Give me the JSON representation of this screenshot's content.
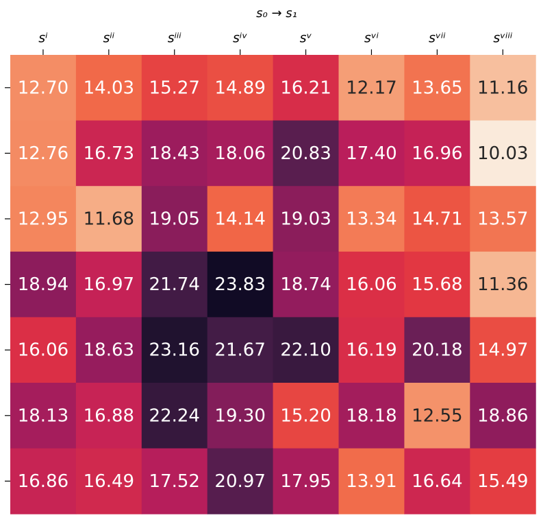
{
  "chart_data": {
    "type": "heatmap",
    "title": "s₀ → s₁",
    "x_categories": [
      "sⁱ",
      "sⁱⁱ",
      "sⁱⁱⁱ",
      "sⁱᵛ",
      "sᵛ",
      "sᵛⁱ",
      "sᵛⁱⁱ",
      "sᵛⁱⁱⁱ"
    ],
    "y_categories": [
      null,
      null,
      null,
      null,
      null,
      null,
      null
    ],
    "colormap": "rocket",
    "clim": [
      10,
      24.5
    ],
    "values": [
      [
        12.7,
        14.03,
        15.27,
        14.89,
        16.21,
        12.17,
        13.65,
        11.16
      ],
      [
        12.76,
        16.73,
        18.43,
        18.06,
        20.83,
        17.4,
        16.96,
        10.03
      ],
      [
        12.95,
        11.68,
        19.05,
        14.14,
        19.03,
        13.34,
        14.71,
        13.57
      ],
      [
        18.94,
        16.97,
        21.74,
        23.83,
        18.74,
        16.06,
        15.68,
        11.36
      ],
      [
        16.06,
        18.63,
        23.16,
        21.67,
        22.1,
        16.19,
        20.18,
        14.97
      ],
      [
        18.13,
        16.88,
        22.24,
        19.3,
        15.2,
        18.18,
        12.55,
        18.86
      ],
      [
        16.86,
        16.49,
        17.52,
        20.97,
        17.95,
        13.91,
        16.64,
        15.49
      ]
    ],
    "value_labels": [
      [
        "12.70",
        "14.03",
        "15.27",
        "14.89",
        "16.21",
        "12.17",
        "13.65",
        "11.16"
      ],
      [
        "12.76",
        "16.73",
        "18.43",
        "18.06",
        "20.83",
        "17.40",
        "16.96",
        "10.03"
      ],
      [
        "12.95",
        "11.68",
        "19.05",
        "14.14",
        "19.03",
        "13.34",
        "14.71",
        "13.57"
      ],
      [
        "18.94",
        "16.97",
        "21.74",
        "23.83",
        "18.74",
        "16.06",
        "15.68",
        "11.36"
      ],
      [
        "16.06",
        "18.63",
        "23.16",
        "21.67",
        "22.10",
        "16.19",
        "20.18",
        "14.97"
      ],
      [
        "18.13",
        "16.88",
        "22.24",
        "19.30",
        "15.20",
        "18.18",
        "12.55",
        "18.86"
      ],
      [
        "16.86",
        "16.49",
        "17.52",
        "20.97",
        "17.95",
        "13.91",
        "16.64",
        "15.49"
      ]
    ]
  }
}
